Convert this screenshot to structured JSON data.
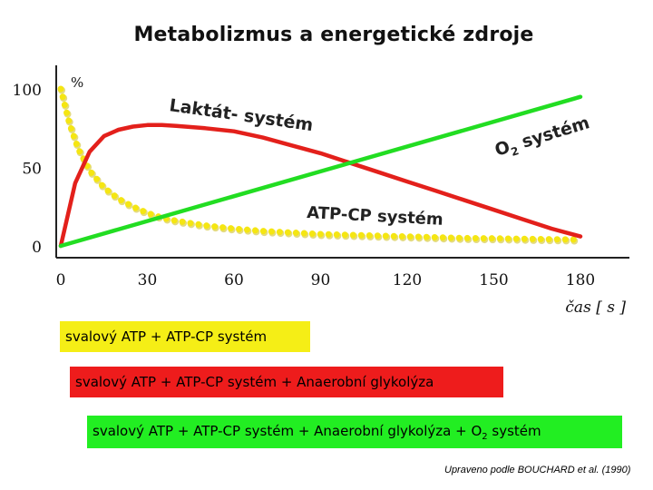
{
  "title": "Metabolizmus a energetické zdroje",
  "chart_data": {
    "type": "line",
    "ylabel": "%",
    "xlabel": "čas [ s ]",
    "xlim": [
      0,
      180
    ],
    "ylim": [
      0,
      100
    ],
    "x_ticks": [
      "0",
      "30",
      "60",
      "90",
      "120",
      "150",
      "180"
    ],
    "y_ticks": [
      "0",
      "50",
      "100"
    ],
    "grid": false,
    "series": [
      {
        "name": "Laktát- systém",
        "color": "#e3201b",
        "x": [
          0,
          5,
          10,
          15,
          20,
          25,
          30,
          35,
          40,
          50,
          60,
          70,
          80,
          90,
          100,
          110,
          120,
          130,
          140,
          150,
          160,
          170,
          180
        ],
        "y": [
          0,
          40,
          60,
          70,
          74,
          76,
          77,
          77,
          76.5,
          75,
          73,
          69,
          64,
          59,
          53,
          47,
          41,
          35,
          29,
          23,
          17,
          11,
          6
        ]
      },
      {
        "name": "O2 systém",
        "color": "#22dd22",
        "x": [
          0,
          180
        ],
        "y": [
          0,
          95
        ]
      },
      {
        "name": "ATP-CP systém",
        "color": "#f5e612",
        "x": [
          0,
          3,
          6,
          10,
          15,
          20,
          25,
          30,
          35,
          40,
          50,
          60,
          70,
          80,
          90,
          100,
          110,
          120,
          130,
          140,
          150,
          160,
          170,
          180
        ],
        "y": [
          100,
          78,
          62,
          48,
          37,
          30,
          25,
          21,
          18,
          16,
          13,
          11,
          9.5,
          8.5,
          7.5,
          7,
          6.5,
          6,
          5.5,
          5,
          4.8,
          4.5,
          4.2,
          4
        ]
      }
    ],
    "labels": {
      "lactate": "Laktát- systém",
      "o2": "O",
      "o2_sub": "2",
      "o2_rest": "systém",
      "atp": "ATP-CP systém"
    }
  },
  "bands": [
    {
      "text": "svalový ATP + ATP-CP systém",
      "color": "#f5ee16"
    },
    {
      "text": "svalový ATP + ATP-CP systém + Anaerobní glykolýza",
      "color": "#ee1c1c"
    },
    {
      "text": "svalový ATP + ATP-CP systém + Anaerobní glykolýza + O",
      "sub": "2",
      "rest": " systém",
      "color": "#22ee22"
    }
  ],
  "source": "Upraveno podle BOUCHARD et al. (1990)"
}
